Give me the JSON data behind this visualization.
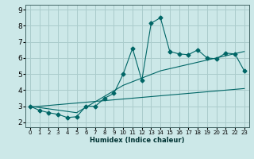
{
  "xlabel": "Humidex (Indice chaleur)",
  "bg_color": "#cce8e8",
  "grid_color": "#aacccc",
  "line_color": "#006666",
  "xlim": [
    -0.5,
    23.5
  ],
  "ylim": [
    1.7,
    9.3
  ],
  "x_ticks": [
    0,
    1,
    2,
    3,
    4,
    5,
    6,
    7,
    8,
    9,
    10,
    11,
    12,
    13,
    14,
    15,
    16,
    17,
    18,
    19,
    20,
    21,
    22,
    23
  ],
  "y_ticks": [
    2,
    3,
    4,
    5,
    6,
    7,
    8,
    9
  ],
  "series1_x": [
    0,
    1,
    2,
    3,
    4,
    5,
    6,
    7,
    8,
    9,
    10,
    11,
    12,
    13,
    14,
    15,
    16,
    17,
    18,
    19,
    20,
    21,
    22,
    23
  ],
  "series1_y": [
    3.0,
    2.75,
    2.6,
    2.5,
    2.3,
    2.35,
    3.0,
    3.0,
    3.5,
    3.8,
    5.0,
    6.6,
    4.6,
    8.15,
    8.5,
    6.4,
    6.25,
    6.2,
    6.5,
    6.0,
    5.95,
    6.3,
    6.25,
    5.2
  ],
  "series2_x": [
    0,
    23
  ],
  "series2_y": [
    2.95,
    4.1
  ],
  "series3_x": [
    0,
    5,
    10,
    14,
    23
  ],
  "series3_y": [
    3.0,
    2.6,
    4.3,
    5.2,
    6.4
  ]
}
